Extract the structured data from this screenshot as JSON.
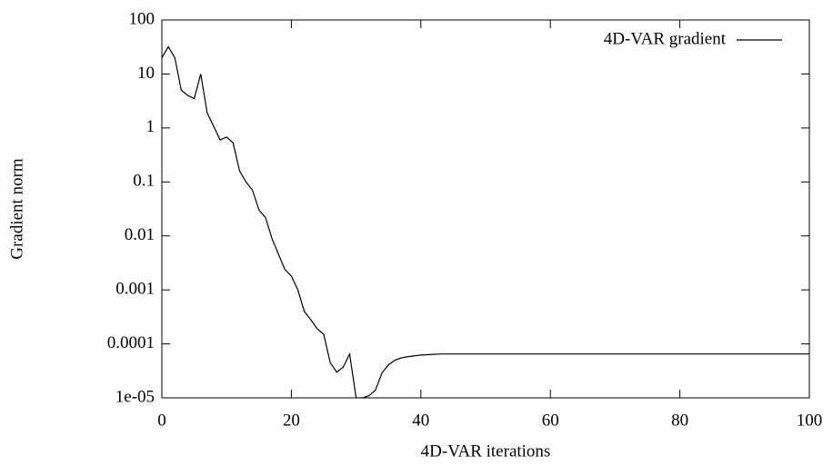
{
  "chart_data": {
    "type": "line",
    "xlabel": "4D-VAR iterations",
    "ylabel": "Gradient norm",
    "log_y": true,
    "legend": "top right",
    "xlim": [
      0,
      100
    ],
    "xticks": [
      0,
      20,
      40,
      60,
      80,
      100
    ],
    "ylim": [
      1e-05,
      100
    ],
    "yticks": [
      {
        "value": 1e-05,
        "label": "1e-05"
      },
      0.0001,
      0.001,
      0.01,
      0.1,
      1,
      10,
      100
    ],
    "x": [
      0,
      1,
      2,
      3,
      4,
      5,
      6,
      7,
      8,
      9,
      10,
      11,
      12,
      13,
      14,
      15,
      16,
      17,
      18,
      19,
      20,
      21,
      22,
      23,
      24,
      25,
      26,
      27,
      28,
      29,
      30,
      31,
      32,
      33,
      34,
      35,
      36,
      37,
      38,
      39,
      40,
      41,
      42,
      43,
      44,
      45,
      46,
      47,
      48,
      49,
      50,
      51,
      52,
      53,
      54,
      55,
      56,
      57,
      58,
      59,
      60,
      61,
      62,
      63,
      64,
      65,
      66,
      67,
      68,
      69,
      70,
      71,
      72,
      73,
      74,
      75,
      76,
      77,
      78,
      79,
      80,
      81,
      82,
      83,
      84,
      85,
      86,
      87,
      88,
      89,
      90,
      91,
      92,
      93,
      94,
      95,
      96,
      97,
      98,
      99,
      100
    ],
    "series": [
      {
        "name": "4D-VAR gradient",
        "color": "#000000",
        "values": [
          20,
          32,
          20,
          5,
          4,
          3.5,
          10,
          1.9,
          1.07,
          0.6,
          0.68,
          0.53,
          0.16,
          0.1,
          0.07,
          0.03,
          0.022,
          0.009,
          0.0046,
          0.0024,
          0.0018,
          0.001,
          0.0004,
          0.00028,
          0.00019,
          0.00015,
          4.5e-05,
          3e-05,
          3.7e-05,
          6.5e-05,
          1e-05,
          1e-05,
          1.1e-05,
          1.4e-05,
          2.9e-05,
          4.1e-05,
          5e-05,
          5.5e-05,
          5.8e-05,
          6e-05,
          6.2e-05,
          6.3e-05,
          6.4e-05,
          6.5e-05,
          6.5e-05,
          6.5e-05,
          6.5e-05,
          6.5e-05,
          6.5e-05,
          6.5e-05,
          6.5e-05,
          6.5e-05,
          6.5e-05,
          6.5e-05,
          6.5e-05,
          6.5e-05,
          6.5e-05,
          6.5e-05,
          6.5e-05,
          6.5e-05,
          6.5e-05,
          6.5e-05,
          6.5e-05,
          6.5e-05,
          6.5e-05,
          6.5e-05,
          6.5e-05,
          6.5e-05,
          6.5e-05,
          6.5e-05,
          6.5e-05,
          6.5e-05,
          6.5e-05,
          6.5e-05,
          6.5e-05,
          6.5e-05,
          6.5e-05,
          6.5e-05,
          6.5e-05,
          6.5e-05,
          6.5e-05,
          6.5e-05,
          6.5e-05,
          6.5e-05,
          6.5e-05,
          6.5e-05,
          6.5e-05,
          6.5e-05,
          6.5e-05,
          6.5e-05,
          6.5e-05,
          6.5e-05,
          6.5e-05,
          6.5e-05,
          6.5e-05,
          6.5e-05,
          6.5e-05,
          6.5e-05,
          6.5e-05,
          6.5e-05,
          6.5e-05
        ]
      }
    ]
  }
}
